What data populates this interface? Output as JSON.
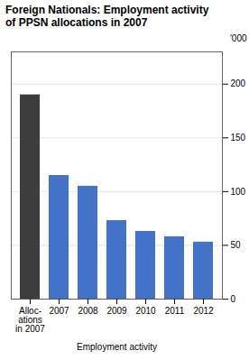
{
  "chart_data": {
    "type": "bar",
    "title": "Foreign Nationals: Employment activity\nof PPSN allocations  in 2007",
    "xlabel": "Employment activity",
    "ylabel": "'000",
    "categories": [
      "Alloc-\nations\nin 2007",
      "2007",
      "2008",
      "2009",
      "2010",
      "2011",
      "2012"
    ],
    "values": [
      190,
      115,
      105,
      73,
      63,
      58,
      53
    ],
    "colors": [
      "#3d3d3d",
      "#4472c4",
      "#4472c4",
      "#4472c4",
      "#4472c4",
      "#4472c4",
      "#4472c4"
    ],
    "ylim": [
      0,
      230
    ],
    "yticks": [
      0,
      50,
      100,
      150,
      200
    ],
    "grid": true
  }
}
